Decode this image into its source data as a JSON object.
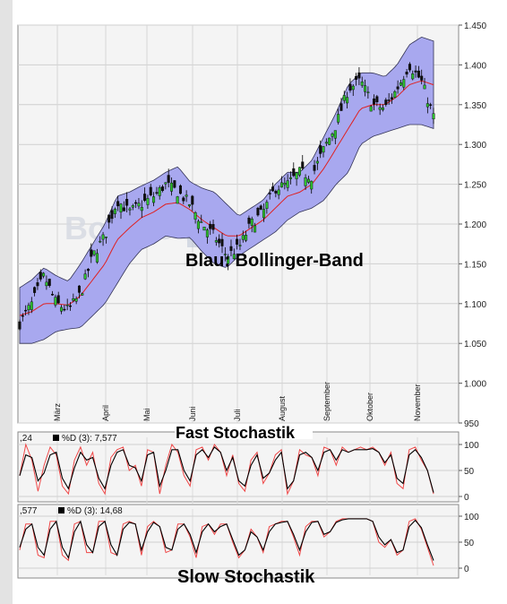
{
  "chart_data": [
    {
      "type": "candlestick",
      "ylim": [
        950,
        1450
      ],
      "y_ticks": [
        "1.450",
        "1.400",
        "1.350",
        "1.300",
        "1.250",
        "1.200",
        "1.150",
        "1.100",
        "1.050",
        "1.000",
        "950"
      ],
      "months": [
        "März",
        "April",
        "Mai",
        "Juni",
        "Juli",
        "August",
        "September",
        "Oktober",
        "November"
      ],
      "watermark": "BoerseGo.de",
      "annotation": "Blau: Bollinger-Band",
      "close_anchors": [
        1075,
        1100,
        1135,
        1100,
        1092,
        1112,
        1160,
        1185,
        1230,
        1215,
        1225,
        1235,
        1250,
        1240,
        1225,
        1200,
        1185,
        1160,
        1170,
        1200,
        1215,
        1245,
        1250,
        1265,
        1260,
        1295,
        1325,
        1370,
        1380,
        1350,
        1345,
        1370,
        1400,
        1380,
        1335
      ],
      "sma_anchors": [
        1085,
        1090,
        1100,
        1100,
        1098,
        1110,
        1130,
        1150,
        1180,
        1195,
        1208,
        1215,
        1225,
        1227,
        1218,
        1205,
        1195,
        1185,
        1185,
        1195,
        1205,
        1220,
        1235,
        1240,
        1250,
        1270,
        1295,
        1320,
        1345,
        1350,
        1350,
        1360,
        1375,
        1380,
        1375
      ],
      "band_width_anchors": [
        35,
        40,
        45,
        35,
        30,
        40,
        45,
        50,
        55,
        45,
        40,
        40,
        40,
        45,
        35,
        40,
        45,
        40,
        25,
        25,
        25,
        30,
        30,
        25,
        30,
        40,
        45,
        55,
        45,
        40,
        35,
        40,
        50,
        55,
        55
      ]
    },
    {
      "type": "line",
      "title": "Fast Stochastik",
      "legend_value": ",24",
      "legend_label": "%D (3): 7,577",
      "ylim": [
        0,
        100
      ],
      "y_ticks": [
        "100",
        "50",
        "0"
      ],
      "series": [
        {
          "values": [
            40,
            100,
            70,
            10,
            60,
            95,
            80,
            20,
            5,
            70,
            95,
            60,
            85,
            25,
            5,
            75,
            90,
            95,
            50,
            60,
            20,
            90,
            85,
            5,
            60,
            100,
            85,
            40,
            20,
            90,
            95,
            70,
            100,
            85,
            40,
            80,
            25,
            10,
            70,
            85,
            25,
            45,
            80,
            90,
            5,
            30,
            90,
            80,
            75,
            40,
            95,
            90,
            60,
            95,
            85,
            90,
            95,
            90,
            95,
            85,
            60,
            85,
            25,
            15,
            90,
            95,
            70,
            50,
            5
          ]
        },
        {
          "values": [
            40,
            80,
            75,
            30,
            45,
            80,
            85,
            35,
            15,
            55,
            85,
            70,
            75,
            35,
            15,
            60,
            85,
            90,
            60,
            55,
            30,
            80,
            85,
            20,
            50,
            90,
            90,
            50,
            30,
            80,
            90,
            75,
            95,
            85,
            50,
            75,
            30,
            20,
            60,
            80,
            35,
            45,
            70,
            85,
            15,
            30,
            80,
            85,
            75,
            50,
            85,
            90,
            70,
            90,
            85,
            90,
            90,
            90,
            92,
            85,
            65,
            80,
            35,
            25,
            80,
            90,
            75,
            50,
            7.6
          ]
        }
      ]
    },
    {
      "type": "line",
      "title": "Slow Stochastik",
      "legend_value": ",577",
      "legend_label": "%D (3): 14,68",
      "ylim": [
        0,
        100
      ],
      "y_ticks": [
        "100",
        "50",
        "0"
      ],
      "series": [
        {
          "values": [
            35,
            85,
            85,
            25,
            20,
            90,
            90,
            25,
            15,
            85,
            90,
            30,
            30,
            90,
            90,
            30,
            25,
            85,
            90,
            85,
            25,
            80,
            90,
            80,
            30,
            35,
            85,
            85,
            60,
            20,
            80,
            85,
            65,
            85,
            85,
            50,
            20,
            35,
            75,
            60,
            30,
            80,
            85,
            90,
            90,
            60,
            25,
            80,
            90,
            90,
            60,
            70,
            90,
            95,
            95,
            95,
            95,
            95,
            90,
            50,
            40,
            55,
            25,
            35,
            90,
            95,
            75,
            40,
            5
          ]
        },
        {
          "values": [
            40,
            75,
            85,
            40,
            25,
            75,
            90,
            40,
            20,
            70,
            90,
            45,
            30,
            80,
            90,
            45,
            25,
            75,
            88,
            85,
            35,
            70,
            88,
            80,
            40,
            35,
            75,
            85,
            65,
            30,
            70,
            85,
            70,
            80,
            85,
            55,
            25,
            35,
            70,
            60,
            35,
            70,
            85,
            88,
            90,
            65,
            35,
            70,
            88,
            90,
            65,
            70,
            88,
            93,
            95,
            95,
            95,
            95,
            90,
            60,
            45,
            55,
            30,
            35,
            80,
            92,
            78,
            45,
            14.68
          ]
        }
      ]
    }
  ]
}
